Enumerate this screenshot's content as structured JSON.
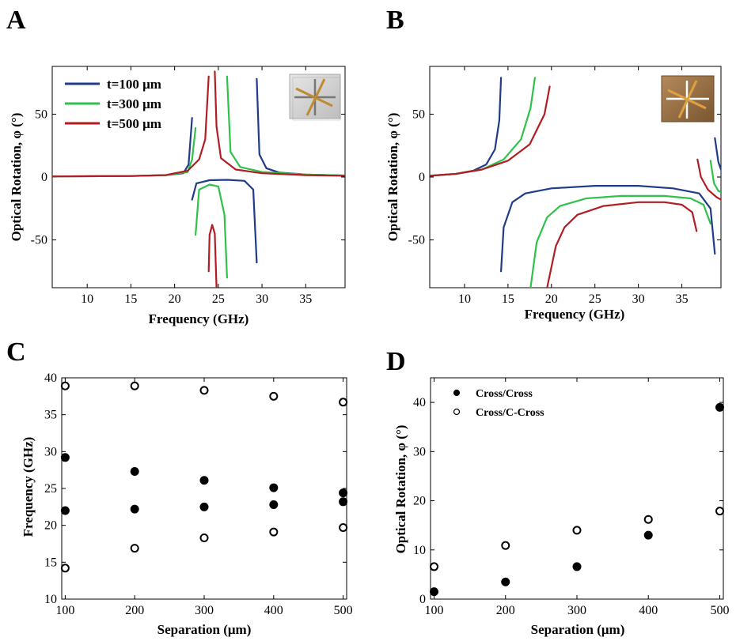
{
  "figure": {
    "panels": [
      {
        "id": "A",
        "label": "A",
        "xlabel": "Frequency (GHz)",
        "ylabel": "Optical Rotation, φ (°)",
        "inset_icon": "cross-structure-gray-icon"
      },
      {
        "id": "B",
        "label": "B",
        "xlabel": "Frequency (GHz)",
        "ylabel": "Optical Rotation, φ (°)",
        "inset_icon": "cross-structure-bronze-icon"
      },
      {
        "id": "C",
        "label": "C",
        "xlabel": "Separation (μm)",
        "ylabel": "Frequency (GHz)"
      },
      {
        "id": "D",
        "label": "D",
        "xlabel": "Separation (μm)",
        "ylabel": "Optical Rotation, φ (°)"
      }
    ]
  },
  "chart_data": [
    {
      "panel": "A",
      "type": "line",
      "xlabel": "Frequency (GHz)",
      "ylabel": "Optical Rotation, φ (°)",
      "xlim": [
        6,
        39.5
      ],
      "ylim": [
        -88,
        88
      ],
      "xticks": [
        10,
        15,
        20,
        25,
        30,
        35
      ],
      "yticks": [
        -50,
        0,
        50
      ],
      "legend_position": "top-left",
      "series": [
        {
          "name": "t=100 μm",
          "color": "#1f3c88",
          "segments": [
            [
              [
                6,
                0.5
              ],
              [
                15,
                0.8
              ],
              [
                19,
                1.5
              ],
              [
                21,
                3
              ],
              [
                21.6,
                10
              ],
              [
                22.0,
                47
              ]
            ],
            [
              [
                22.0,
                -18
              ],
              [
                22.5,
                -5
              ],
              [
                24,
                -2.5
              ],
              [
                26,
                -2.2
              ],
              [
                28,
                -3
              ],
              [
                29,
                -10
              ],
              [
                29.4,
                -68
              ]
            ],
            [
              [
                29.4,
                78
              ],
              [
                29.7,
                18
              ],
              [
                30.5,
                7
              ],
              [
                32,
                3.5
              ],
              [
                35,
                2
              ],
              [
                39.5,
                1.2
              ]
            ]
          ]
        },
        {
          "name": "t=300 μm",
          "color": "#2ec24a",
          "segments": [
            [
              [
                6,
                0.5
              ],
              [
                15,
                0.8
              ],
              [
                19,
                1.5
              ],
              [
                21.5,
                4
              ],
              [
                22.0,
                14
              ],
              [
                22.4,
                39
              ]
            ],
            [
              [
                22.4,
                -46
              ],
              [
                22.8,
                -10
              ],
              [
                24,
                -6
              ],
              [
                25,
                -7.5
              ],
              [
                25.7,
                -30
              ],
              [
                26.0,
                -80
              ]
            ],
            [
              [
                26.0,
                80
              ],
              [
                26.4,
                20
              ],
              [
                27.5,
                8
              ],
              [
                30,
                4
              ],
              [
                35,
                2
              ],
              [
                39.5,
                1.2
              ]
            ]
          ]
        },
        {
          "name": "t=500 μm",
          "color": "#b01e23",
          "segments": [
            [
              [
                6,
                0.5
              ],
              [
                15,
                0.8
              ],
              [
                19,
                1.6
              ],
              [
                21.5,
                5
              ],
              [
                22.8,
                14
              ],
              [
                23.5,
                30
              ],
              [
                23.9,
                80
              ]
            ],
            [
              [
                23.9,
                -75
              ],
              [
                24.0,
                -46
              ],
              [
                24.3,
                -38
              ],
              [
                24.6,
                -45
              ],
              [
                24.8,
                -88
              ]
            ],
            [
              [
                24.6,
                84
              ],
              [
                24.8,
                40
              ],
              [
                25.3,
                15
              ],
              [
                27,
                6
              ],
              [
                30,
                3
              ],
              [
                35,
                1.5
              ],
              [
                39.5,
                1
              ]
            ]
          ]
        }
      ]
    },
    {
      "panel": "B",
      "type": "line",
      "xlabel": "Frequency (GHz)",
      "ylabel": "Optical Rotation, φ (°)",
      "xlim": [
        6,
        39.5
      ],
      "ylim": [
        -88,
        88
      ],
      "xticks": [
        10,
        15,
        20,
        25,
        30,
        35
      ],
      "yticks": [
        -50,
        0,
        50
      ],
      "series": [
        {
          "name": "t=100 μm",
          "color": "#1f3c88",
          "segments": [
            [
              [
                6,
                1
              ],
              [
                9,
                2.5
              ],
              [
                11,
                5
              ],
              [
                12.5,
                10
              ],
              [
                13.5,
                22
              ],
              [
                14.0,
                45
              ],
              [
                14.2,
                79
              ]
            ],
            [
              [
                14.2,
                -75
              ],
              [
                14.5,
                -40
              ],
              [
                15.5,
                -20
              ],
              [
                17,
                -13
              ],
              [
                20,
                -9
              ],
              [
                25,
                -7
              ],
              [
                30,
                -7
              ],
              [
                34,
                -9
              ],
              [
                37,
                -13
              ],
              [
                38.3,
                -25
              ],
              [
                38.8,
                -61
              ]
            ],
            [
              [
                38.8,
                31
              ],
              [
                39.2,
                12
              ],
              [
                39.5,
                6
              ]
            ]
          ]
        },
        {
          "name": "t=300 μm",
          "color": "#2ec24a",
          "segments": [
            [
              [
                6,
                1
              ],
              [
                9,
                2.5
              ],
              [
                12,
                6
              ],
              [
                14.5,
                14
              ],
              [
                16.5,
                30
              ],
              [
                17.6,
                55
              ],
              [
                18.1,
                79
              ]
            ],
            [
              [
                17.6,
                -88
              ],
              [
                18.3,
                -52
              ],
              [
                19.5,
                -32
              ],
              [
                21,
                -23
              ],
              [
                24,
                -17
              ],
              [
                28,
                -15
              ],
              [
                33,
                -15
              ],
              [
                36,
                -17
              ],
              [
                37.5,
                -22
              ],
              [
                38.3,
                -37
              ]
            ],
            [
              [
                38.3,
                13
              ],
              [
                38.7,
                -5
              ],
              [
                39.2,
                -11
              ],
              [
                39.5,
                -12
              ]
            ]
          ]
        },
        {
          "name": "t=500 μm",
          "color": "#b01e23",
          "segments": [
            [
              [
                6,
                1
              ],
              [
                9,
                2.5
              ],
              [
                12,
                6
              ],
              [
                15,
                13
              ],
              [
                17.5,
                26
              ],
              [
                19.2,
                50
              ],
              [
                19.8,
                72
              ]
            ],
            [
              [
                19.5,
                -88
              ],
              [
                20.5,
                -55
              ],
              [
                21.5,
                -40
              ],
              [
                23,
                -30
              ],
              [
                26,
                -23
              ],
              [
                30,
                -20
              ],
              [
                33,
                -20
              ],
              [
                35,
                -22
              ],
              [
                36.2,
                -28
              ],
              [
                36.7,
                -43
              ]
            ],
            [
              [
                36.8,
                14
              ],
              [
                37.2,
                0
              ],
              [
                38,
                -10
              ],
              [
                39,
                -16
              ],
              [
                39.5,
                -18
              ]
            ]
          ]
        }
      ]
    },
    {
      "panel": "C",
      "type": "scatter",
      "xlabel": "Separation (μm)",
      "ylabel": "Frequency (GHz)",
      "xlim": [
        95,
        505
      ],
      "ylim": [
        10,
        40
      ],
      "xticks": [
        100,
        200,
        300,
        400,
        500
      ],
      "yticks": [
        10,
        15,
        20,
        25,
        30,
        35,
        40
      ],
      "series": [
        {
          "marker": "filled",
          "x": [
            100,
            100,
            200,
            200,
            300,
            300,
            400,
            400,
            500,
            500
          ],
          "y": [
            22.0,
            29.2,
            22.2,
            27.3,
            22.5,
            26.1,
            22.8,
            25.1,
            23.2,
            24.4
          ]
        },
        {
          "marker": "open",
          "x": [
            100,
            100,
            200,
            200,
            300,
            300,
            400,
            400,
            500,
            500
          ],
          "y": [
            14.2,
            38.9,
            16.9,
            38.9,
            18.3,
            38.3,
            19.1,
            37.5,
            19.7,
            36.7
          ]
        }
      ]
    },
    {
      "panel": "D",
      "type": "scatter",
      "xlabel": "Separation (μm)",
      "ylabel": "Optical Rotation, φ (°)",
      "xlim": [
        95,
        505
      ],
      "ylim": [
        0,
        45
      ],
      "xticks": [
        100,
        200,
        300,
        400,
        500
      ],
      "yticks": [
        0,
        10,
        20,
        30,
        40
      ],
      "legend_position": "top-left",
      "series": [
        {
          "name": "Cross/Cross",
          "marker": "filled",
          "x": [
            100,
            200,
            300,
            400,
            500
          ],
          "y": [
            1.5,
            3.5,
            6.6,
            13.0,
            39.0
          ]
        },
        {
          "name": "Cross/C-Cross",
          "marker": "open",
          "x": [
            100,
            200,
            300,
            400,
            500
          ],
          "y": [
            6.6,
            10.9,
            14.0,
            16.2,
            17.9
          ]
        }
      ]
    }
  ]
}
